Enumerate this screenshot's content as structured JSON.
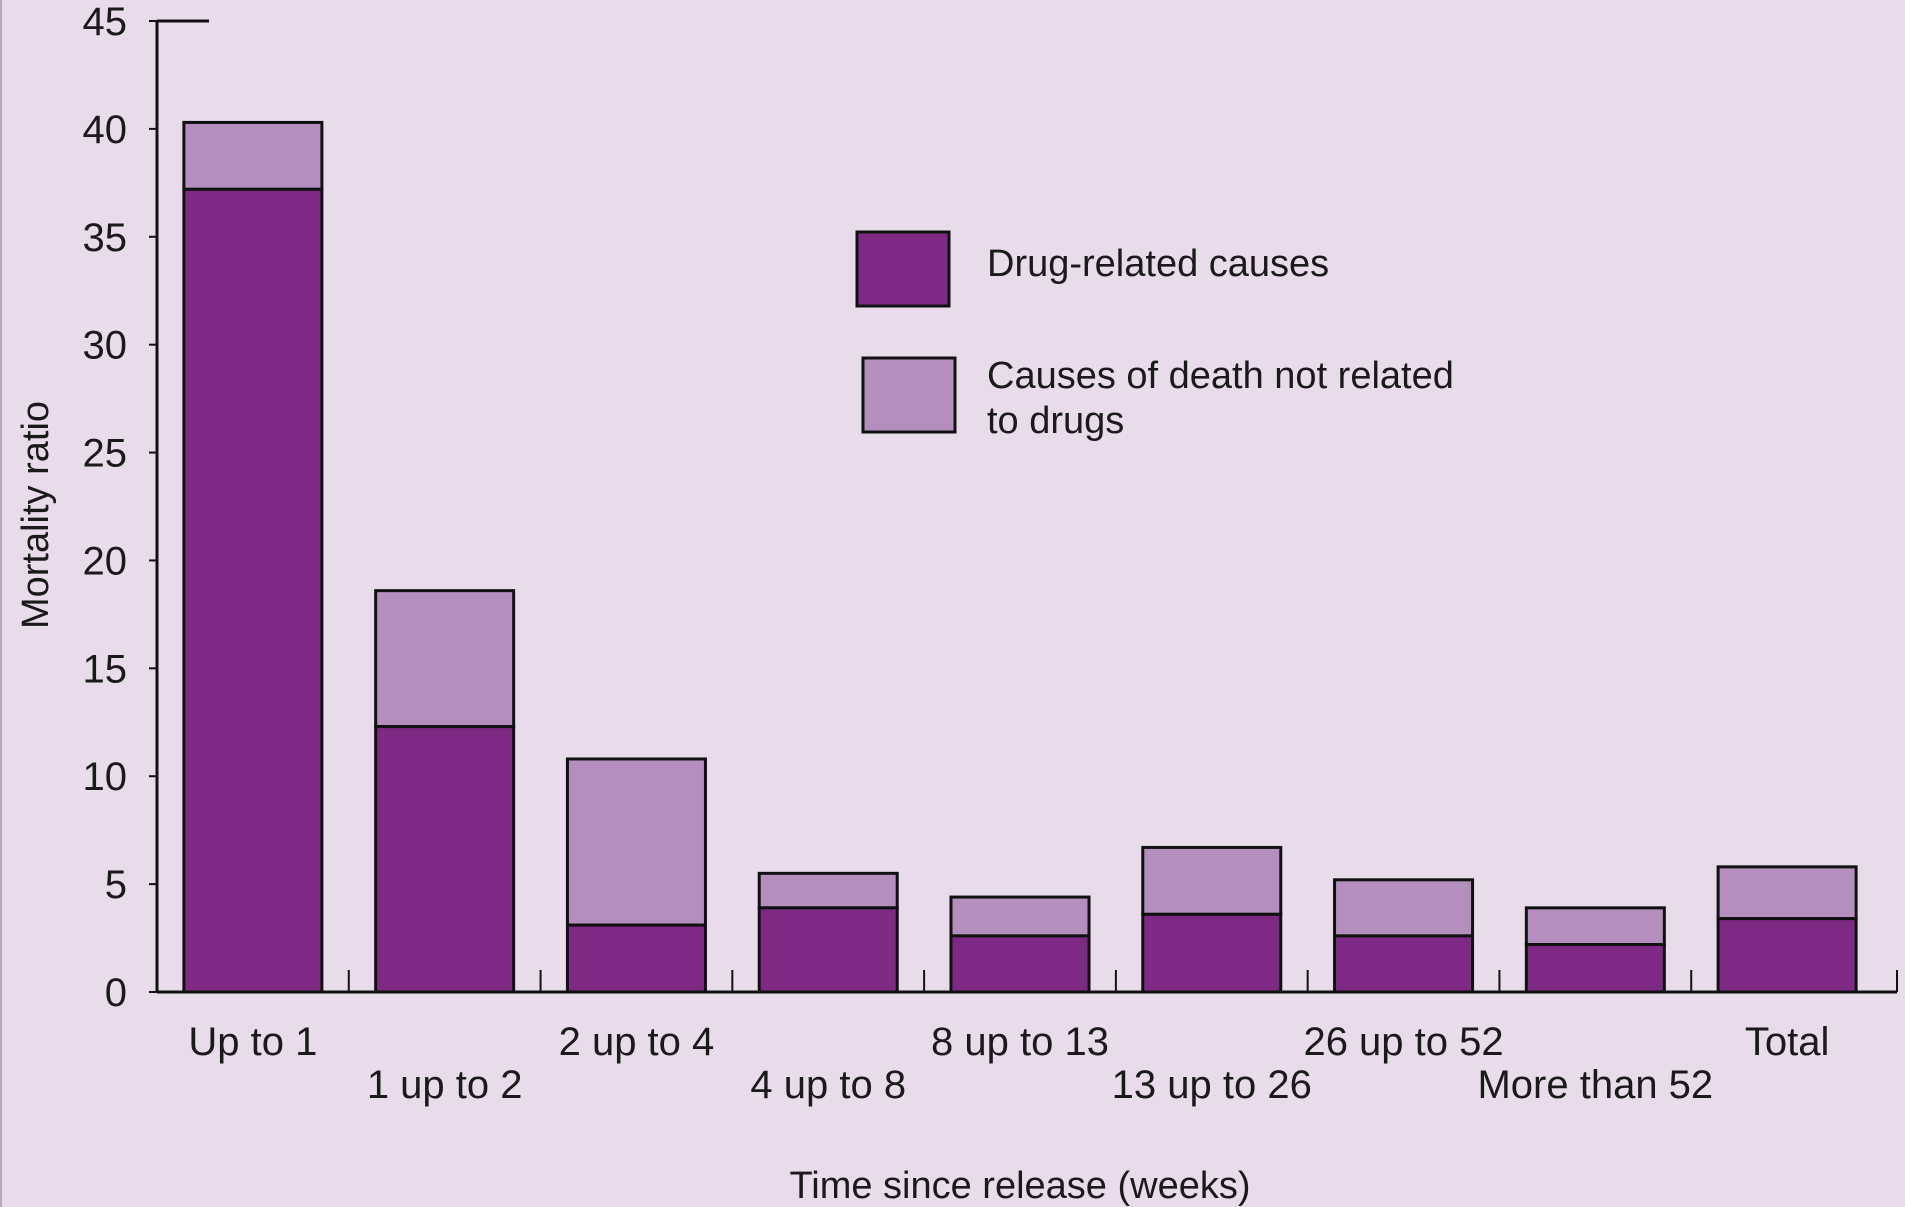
{
  "chart_data": {
    "type": "bar",
    "stacked": true,
    "title": "",
    "xlabel": "Time since release (weeks)",
    "ylabel": "Mortality ratio",
    "ylim": [
      0,
      45
    ],
    "yticks": [
      "0",
      "5",
      "10",
      "15",
      "20",
      "25",
      "30",
      "35",
      "40",
      "45"
    ],
    "categories": [
      "Up to 1",
      "1 up to 2",
      "2 up to 4",
      "4 up to 8",
      "8 up to 13",
      "13 up to 26",
      "26 up to 52",
      "More than 52",
      "Total"
    ],
    "series": [
      {
        "name": "Drug-related causes",
        "values": [
          37.2,
          12.3,
          3.1,
          3.9,
          2.6,
          3.6,
          2.6,
          2.2,
          3.4
        ]
      },
      {
        "name": "Causes of death not related to drugs",
        "values": [
          3.1,
          6.3,
          7.7,
          1.6,
          1.8,
          3.1,
          2.6,
          1.7,
          2.4
        ]
      }
    ],
    "legend": {
      "position": "top-center",
      "entries": [
        {
          "label_lines": [
            "Drug-related causes"
          ]
        },
        {
          "label_lines": [
            "Causes of death not related",
            "to drugs"
          ]
        }
      ]
    },
    "grid": false
  },
  "colors": {
    "background": "#e8dcea",
    "drug_related": "#7e2a84",
    "not_drug_related": "#b48fbd",
    "outline": "#111111"
  }
}
